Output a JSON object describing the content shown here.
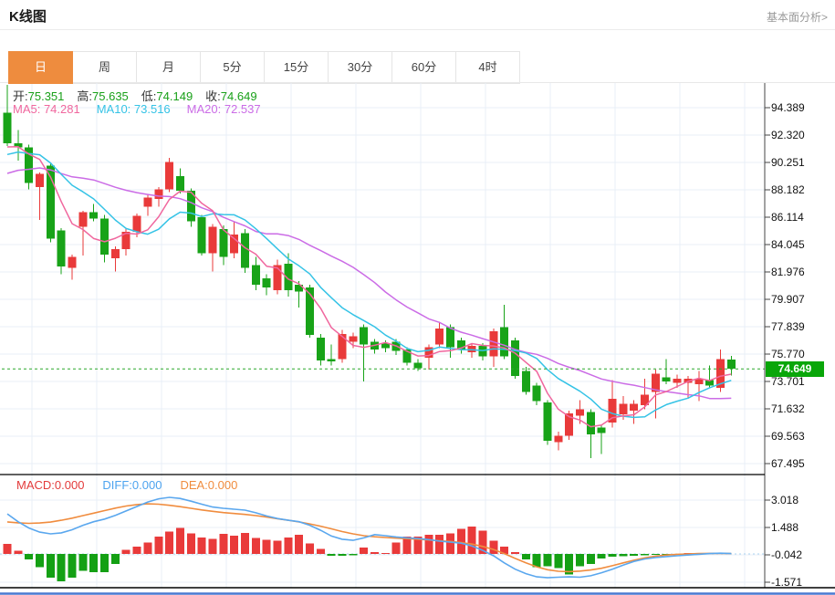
{
  "page": {
    "title": "K线图",
    "top_link": "基本面分析>"
  },
  "tabs": {
    "items": [
      "日",
      "周",
      "月",
      "5分",
      "15分",
      "30分",
      "60分",
      "4时"
    ],
    "active_index": 0
  },
  "indicators": {
    "ohlc_row": {
      "open_label": "开:",
      "open": "75.351",
      "high_label": "高:",
      "high": "75.635",
      "low_label": "低:",
      "low": "74.149",
      "close_label": "收:",
      "close": "74.649"
    },
    "ma_row": {
      "ma5": "MA5: 74.281",
      "ma10": "MA10: 73.516",
      "ma20": "MA20: 72.537"
    },
    "macd_row": {
      "macd": "MACD:0.000",
      "diff": "DIFF:0.000",
      "dea": "DEA:0.000"
    }
  },
  "colors": {
    "up_candle": "#e93a3a",
    "down_candle": "#18a318",
    "ma5": "#f0679e",
    "ma10": "#35c3e6",
    "ma20": "#cb6ce6",
    "macd_hist_up": "#e93a3a",
    "macd_hist_down": "#14a014",
    "diff_line": "#5aa7ee",
    "dea_line": "#f08c3e",
    "current_price_line": "#2aa82a",
    "badge_bg": "#09a609",
    "active_tab": "#ee8c3e",
    "grid": "#e9eff7",
    "axis": "#444444",
    "panel_divider": "#000000",
    "bottom_bar": "#4a7ad2"
  },
  "chart_data": [
    {
      "type": "candlestick",
      "title": "K线图 (daily K-line, main panel)",
      "xlabel": "",
      "ylabel": "price",
      "grid": true,
      "axis_ticks": [
        "94.389",
        "92.320",
        "90.251",
        "88.182",
        "86.114",
        "84.045",
        "81.976",
        "79.907",
        "77.839",
        "75.770",
        "73.701",
        "71.632",
        "69.563",
        "67.495"
      ],
      "ylim": [
        66.8,
        96.3
      ],
      "current_price": "74.649",
      "ohlc": {
        "open": 75.351,
        "high": 75.635,
        "low": 74.149,
        "close": 74.649
      },
      "ma_values": {
        "ma5": 74.281,
        "ma10": 73.516,
        "ma20": 72.537
      },
      "pre_closes": [
        86.8,
        87.1,
        87.3,
        87.6,
        87.9,
        88.1,
        88.4,
        88.7,
        88.9,
        89.2,
        89.5,
        89.9,
        90.3,
        90.7,
        91.0,
        91.3,
        91.5,
        91.4,
        91.2
      ],
      "candles": [
        [
          94.0,
          96.1,
          91.5,
          91.7
        ],
        [
          91.7,
          92.7,
          90.4,
          91.4
        ],
        [
          91.4,
          91.6,
          88.2,
          88.7
        ],
        [
          88.4,
          89.5,
          85.9,
          89.4
        ],
        [
          90.0,
          90.2,
          84.2,
          84.5
        ],
        [
          85.1,
          85.3,
          81.8,
          82.4
        ],
        [
          82.3,
          83.3,
          81.4,
          83.1
        ],
        [
          85.4,
          86.6,
          83.2,
          86.5
        ],
        [
          86.5,
          87.1,
          85.8,
          86.0
        ],
        [
          86.0,
          86.3,
          82.7,
          83.3
        ],
        [
          83.0,
          83.9,
          82.0,
          83.7
        ],
        [
          83.7,
          85.3,
          83.2,
          85.0
        ],
        [
          85.0,
          86.4,
          84.6,
          86.2
        ],
        [
          86.9,
          87.8,
          86.2,
          87.6
        ],
        [
          87.5,
          88.4,
          86.9,
          88.2
        ],
        [
          88.2,
          90.6,
          88.0,
          90.3
        ],
        [
          89.2,
          89.8,
          87.9,
          88.1
        ],
        [
          88.1,
          88.3,
          85.4,
          85.8
        ],
        [
          86.1,
          86.3,
          83.2,
          83.4
        ],
        [
          83.4,
          85.6,
          82.0,
          85.4
        ],
        [
          85.2,
          85.5,
          82.5,
          83.1
        ],
        [
          83.4,
          85.8,
          83.0,
          84.8
        ],
        [
          84.9,
          85.2,
          81.9,
          82.3
        ],
        [
          82.5,
          83.1,
          80.6,
          81.0
        ],
        [
          81.5,
          81.8,
          80.2,
          80.8
        ],
        [
          80.6,
          82.9,
          80.3,
          82.5
        ],
        [
          82.6,
          83.4,
          80.1,
          80.6
        ],
        [
          81.0,
          81.3,
          79.3,
          80.5
        ],
        [
          80.8,
          81.0,
          77.0,
          77.2
        ],
        [
          77.0,
          77.3,
          74.9,
          75.3
        ],
        [
          75.4,
          76.5,
          74.9,
          75.2
        ],
        [
          75.4,
          77.6,
          75.1,
          77.3
        ],
        [
          76.7,
          77.4,
          76.2,
          77.1
        ],
        [
          77.8,
          78.0,
          73.7,
          76.5
        ],
        [
          76.7,
          76.9,
          75.8,
          76.1
        ],
        [
          76.6,
          76.8,
          75.9,
          76.2
        ],
        [
          76.7,
          76.9,
          75.7,
          76.0
        ],
        [
          76.1,
          76.3,
          74.9,
          75.1
        ],
        [
          75.1,
          75.4,
          74.5,
          74.7
        ],
        [
          75.5,
          76.5,
          74.6,
          76.3
        ],
        [
          76.5,
          78.2,
          76.2,
          77.7
        ],
        [
          77.8,
          78.0,
          75.5,
          76.3
        ],
        [
          76.8,
          77.0,
          75.8,
          76.1
        ],
        [
          75.9,
          76.6,
          75.5,
          76.4
        ],
        [
          76.4,
          76.6,
          75.3,
          75.6
        ],
        [
          75.6,
          77.7,
          74.8,
          77.5
        ],
        [
          77.8,
          79.5,
          75.4,
          75.6
        ],
        [
          76.8,
          77.0,
          73.9,
          74.1
        ],
        [
          74.5,
          74.8,
          72.7,
          72.9
        ],
        [
          73.4,
          73.6,
          71.9,
          72.2
        ],
        [
          72.1,
          72.3,
          68.9,
          69.2
        ],
        [
          69.1,
          69.9,
          68.5,
          69.6
        ],
        [
          69.6,
          71.5,
          69.3,
          71.3
        ],
        [
          71.1,
          72.3,
          70.5,
          71.6
        ],
        [
          71.4,
          71.6,
          67.9,
          69.7
        ],
        [
          70.2,
          70.4,
          68.2,
          69.8
        ],
        [
          70.6,
          73.8,
          70.2,
          72.4
        ],
        [
          71.2,
          72.6,
          70.8,
          72.0
        ],
        [
          71.5,
          72.3,
          70.5,
          72.0
        ],
        [
          71.9,
          73.9,
          71.6,
          72.7
        ],
        [
          72.9,
          74.6,
          70.9,
          74.3
        ],
        [
          74.0,
          75.4,
          73.5,
          73.7
        ],
        [
          73.6,
          74.2,
          73.2,
          73.9
        ],
        [
          73.6,
          74.1,
          72.4,
          73.9
        ],
        [
          73.5,
          74.5,
          72.2,
          73.9
        ],
        [
          73.8,
          74.9,
          73.2,
          73.4
        ],
        [
          73.2,
          76.1,
          72.9,
          75.4
        ],
        [
          75.351,
          75.635,
          74.149,
          74.649
        ]
      ]
    },
    {
      "type": "bar",
      "title": "MACD (lower panel)",
      "grid": true,
      "axis_ticks": [
        "3.018",
        "1.488",
        "-0.042",
        "-1.571"
      ],
      "ylim": [
        -2.2,
        4.2
      ],
      "values": {
        "macd": 0.0,
        "diff": 0.0,
        "dea": 0.0
      },
      "hist": [
        0.55,
        0.17,
        -0.3,
        -0.73,
        -1.33,
        -1.53,
        -1.33,
        -0.95,
        -1.02,
        -1.02,
        -0.56,
        0.24,
        0.41,
        0.63,
        0.97,
        1.26,
        1.45,
        1.14,
        0.92,
        0.85,
        1.11,
        1.02,
        1.17,
        0.88,
        0.8,
        0.75,
        0.92,
        1.06,
        0.58,
        0.29,
        -0.1,
        -0.1,
        -0.08,
        0.35,
        0.1,
        0.04,
        0.63,
        0.97,
        0.97,
        1.06,
        1.06,
        1.14,
        1.4,
        1.53,
        1.3,
        0.75,
        0.4,
        0.1,
        -0.31,
        -0.73,
        -0.7,
        -0.8,
        -1.16,
        -0.7,
        -0.56,
        -0.25,
        -0.15,
        -0.12,
        -0.1,
        -0.08,
        -0.06,
        -0.05,
        -0.03,
        0.02,
        0.01,
        0.0,
        0.0,
        0.0
      ],
      "diff": [
        2.24,
        1.8,
        1.45,
        1.22,
        1.12,
        1.18,
        1.35,
        1.6,
        1.8,
        1.95,
        2.15,
        2.4,
        2.65,
        2.9,
        3.08,
        3.16,
        3.1,
        2.95,
        2.78,
        2.62,
        2.55,
        2.5,
        2.45,
        2.3,
        2.12,
        1.98,
        1.88,
        1.8,
        1.6,
        1.32,
        1.0,
        0.82,
        0.76,
        0.9,
        1.08,
        1.02,
        0.95,
        0.9,
        0.86,
        0.8,
        0.72,
        0.66,
        0.6,
        0.45,
        0.2,
        -0.1,
        -0.5,
        -0.85,
        -1.1,
        -1.28,
        -1.33,
        -1.3,
        -1.28,
        -1.3,
        -1.22,
        -1.05,
        -0.85,
        -0.62,
        -0.42,
        -0.28,
        -0.2,
        -0.15,
        -0.1,
        -0.06,
        -0.02,
        0.02,
        0.04,
        0.02
      ],
      "dea": [
        1.79,
        1.74,
        1.71,
        1.73,
        1.78,
        1.88,
        2.0,
        2.14,
        2.28,
        2.42,
        2.56,
        2.68,
        2.76,
        2.8,
        2.78,
        2.72,
        2.64,
        2.55,
        2.46,
        2.38,
        2.31,
        2.26,
        2.21,
        2.14,
        2.06,
        1.97,
        1.88,
        1.79,
        1.68,
        1.55,
        1.4,
        1.25,
        1.12,
        1.02,
        0.96,
        0.92,
        0.88,
        0.85,
        0.82,
        0.78,
        0.74,
        0.7,
        0.64,
        0.55,
        0.42,
        0.25,
        0.02,
        -0.25,
        -0.5,
        -0.72,
        -0.88,
        -0.97,
        -0.99,
        -0.96,
        -0.9,
        -0.8,
        -0.66,
        -0.5,
        -0.35,
        -0.22,
        -0.12,
        -0.06,
        -0.02,
        0.0,
        0.02,
        0.03,
        0.03,
        0.02
      ]
    }
  ]
}
